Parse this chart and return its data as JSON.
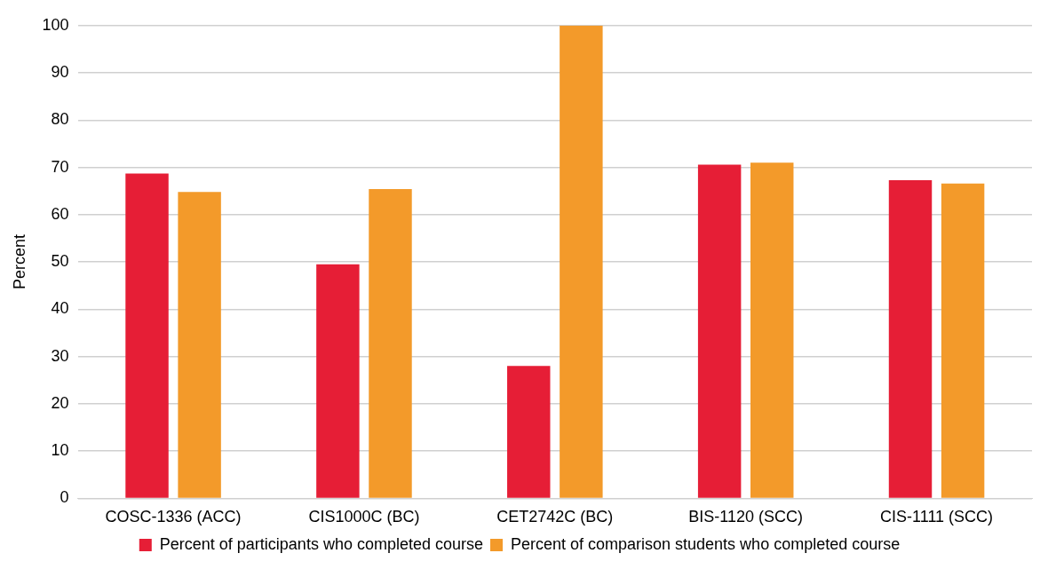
{
  "chart_data": {
    "type": "bar",
    "ylabel": "Percent",
    "categories": [
      "COSC-1336 (ACC)",
      "CIS1000C (BC)",
      "CET2742C (BC)",
      "BIS-1120 (SCC)",
      "CIS-1111 (SCC)"
    ],
    "series": [
      {
        "name": "Percent of participants who completed course",
        "color": "#e61e36",
        "values": [
          68.7,
          49.5,
          28,
          70.6,
          67.3
        ]
      },
      {
        "name": "Percent of comparison students who completed course",
        "color": "#f39a2a",
        "values": [
          64.8,
          65.4,
          100,
          71,
          66.6
        ]
      }
    ],
    "ylim": [
      0,
      100
    ],
    "yticks": [
      0,
      10,
      20,
      30,
      40,
      50,
      60,
      70,
      80,
      90,
      100
    ],
    "grid": "y",
    "legend": "bottom"
  }
}
